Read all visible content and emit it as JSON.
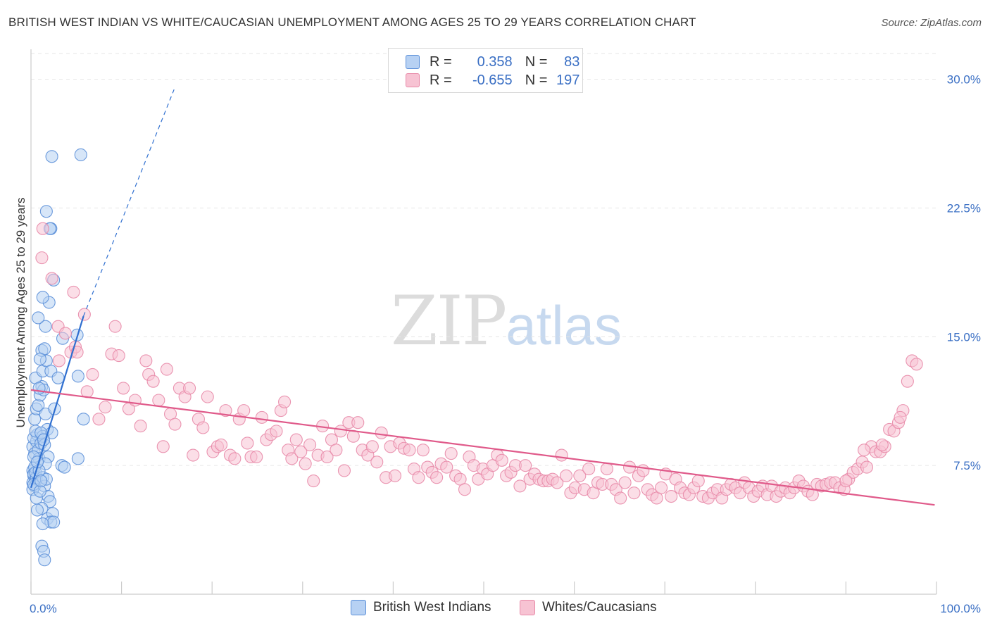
{
  "header": {
    "title": "BRITISH WEST INDIAN VS WHITE/CAUCASIAN UNEMPLOYMENT AMONG AGES 25 TO 29 YEARS CORRELATION CHART",
    "source": "Source: ZipAtlas.com"
  },
  "watermark": {
    "part_a": "ZIP",
    "part_b": "atlas"
  },
  "colors": {
    "blue_fill": "#b7d1f3",
    "blue_stroke": "#5b8fd8",
    "blue_line": "#2f6fd0",
    "pink_fill": "#f7c3d3",
    "pink_stroke": "#e88aa8",
    "pink_line": "#e05a8a",
    "tick_label": "#3a6fc4",
    "grid": "#e6e6e6"
  },
  "corr_legend": {
    "rows": [
      {
        "r_label": "R =",
        "r_value": "0.358",
        "n_label": "N =",
        "n_value": "83"
      },
      {
        "r_label": "R =",
        "r_value": "-0.655",
        "n_label": "N =",
        "n_value": "197"
      }
    ]
  },
  "chart_data": {
    "type": "scatter",
    "title": "BRITISH WEST INDIAN VS WHITE/CAUCASIAN UNEMPLOYMENT AMONG AGES 25 TO 29 YEARS CORRELATION CHART",
    "xlabel": "",
    "ylabel": "Unemployment Among Ages 25 to 29 years",
    "xlim": [
      0,
      100
    ],
    "ylim": [
      0,
      31.5
    ],
    "x_tick_labels": [
      {
        "value": 0,
        "label": "0.0%"
      },
      {
        "value": 100,
        "label": "100.0%"
      }
    ],
    "y_ticks": [
      {
        "value": 7.5,
        "label": "7.5%"
      },
      {
        "value": 15.0,
        "label": "15.0%"
      },
      {
        "value": 22.5,
        "label": "22.5%"
      },
      {
        "value": 30.0,
        "label": "30.0%"
      }
    ],
    "series": [
      {
        "name": "British West Indians",
        "r": 0.358,
        "n": 83,
        "trend": {
          "x0": 0.0,
          "y0": 6.2,
          "x1": 5.8,
          "y1": 16.2,
          "dash_to_x": 15.8,
          "dash_to_y": 29.4
        },
        "points": [
          [
            0.2,
            7.2
          ],
          [
            0.3,
            6.9
          ],
          [
            0.2,
            6.5
          ],
          [
            0.4,
            6.3
          ],
          [
            0.3,
            7.0
          ],
          [
            0.5,
            6.7
          ],
          [
            0.2,
            6.1
          ],
          [
            0.4,
            7.4
          ],
          [
            0.6,
            6.8
          ],
          [
            0.3,
            6.4
          ],
          [
            0.5,
            7.1
          ],
          [
            0.2,
            8.6
          ],
          [
            0.4,
            8.2
          ],
          [
            0.6,
            8.9
          ],
          [
            0.7,
            9.3
          ],
          [
            0.3,
            9.1
          ],
          [
            0.5,
            9.5
          ],
          [
            0.8,
            8.4
          ],
          [
            0.9,
            7.9
          ],
          [
            1.1,
            8.8
          ],
          [
            0.4,
            10.2
          ],
          [
            0.6,
            10.8
          ],
          [
            0.8,
            11.0
          ],
          [
            1.0,
            11.6
          ],
          [
            1.2,
            12.1
          ],
          [
            0.5,
            12.6
          ],
          [
            1.4,
            11.9
          ],
          [
            1.6,
            10.5
          ],
          [
            1.8,
            9.6
          ],
          [
            1.3,
            9.2
          ],
          [
            1.1,
            9.4
          ],
          [
            1.5,
            8.7
          ],
          [
            1.9,
            8.0
          ],
          [
            2.3,
            9.4
          ],
          [
            2.6,
            10.8
          ],
          [
            0.9,
            12.0
          ],
          [
            1.3,
            13.0
          ],
          [
            1.7,
            13.6
          ],
          [
            2.2,
            13.0
          ],
          [
            3.0,
            12.6
          ],
          [
            1.2,
            14.2
          ],
          [
            1.5,
            14.3
          ],
          [
            1.0,
            13.7
          ],
          [
            1.6,
            15.6
          ],
          [
            0.8,
            16.1
          ],
          [
            2.0,
            17.0
          ],
          [
            1.3,
            17.3
          ],
          [
            2.5,
            18.3
          ],
          [
            2.2,
            21.3
          ],
          [
            2.1,
            21.3
          ],
          [
            1.7,
            22.3
          ],
          [
            2.3,
            25.5
          ],
          [
            5.5,
            25.6
          ],
          [
            3.5,
            14.9
          ],
          [
            5.1,
            15.1
          ],
          [
            5.2,
            12.7
          ],
          [
            5.8,
            10.2
          ],
          [
            3.4,
            7.5
          ],
          [
            3.7,
            7.4
          ],
          [
            5.2,
            7.9
          ],
          [
            1.3,
            6.8
          ],
          [
            1.5,
            6.3
          ],
          [
            1.7,
            6.7
          ],
          [
            1.9,
            5.7
          ],
          [
            2.1,
            5.4
          ],
          [
            1.2,
            5.0
          ],
          [
            0.7,
            4.9
          ],
          [
            1.8,
            4.4
          ],
          [
            2.4,
            4.7
          ],
          [
            2.2,
            4.2
          ],
          [
            2.5,
            4.2
          ],
          [
            1.3,
            4.1
          ],
          [
            1.2,
            2.8
          ],
          [
            1.4,
            2.5
          ],
          [
            1.5,
            2.0
          ],
          [
            0.6,
            5.6
          ],
          [
            1.0,
            6.0
          ],
          [
            1.6,
            7.6
          ],
          [
            0.9,
            7.2
          ],
          [
            1.1,
            6.6
          ],
          [
            0.3,
            8.0
          ],
          [
            0.7,
            7.7
          ],
          [
            1.4,
            9.0
          ]
        ]
      },
      {
        "name": "Whites/Caucasians",
        "r": -0.655,
        "n": 197,
        "trend": {
          "x0": 0.0,
          "y0": 11.9,
          "x1": 99.8,
          "y1": 5.2
        },
        "points": [
          [
            1.2,
            19.6
          ],
          [
            1.3,
            21.3
          ],
          [
            2.3,
            18.4
          ],
          [
            3.0,
            15.6
          ],
          [
            3.1,
            13.6
          ],
          [
            3.8,
            15.2
          ],
          [
            4.4,
            14.1
          ],
          [
            4.9,
            14.4
          ],
          [
            5.1,
            14.1
          ],
          [
            5.9,
            16.3
          ],
          [
            4.7,
            17.6
          ],
          [
            6.2,
            11.8
          ],
          [
            6.8,
            12.8
          ],
          [
            7.5,
            10.2
          ],
          [
            8.2,
            10.9
          ],
          [
            8.9,
            14.0
          ],
          [
            9.3,
            15.6
          ],
          [
            9.7,
            13.9
          ],
          [
            10.2,
            12.0
          ],
          [
            10.8,
            10.8
          ],
          [
            11.5,
            11.3
          ],
          [
            12.1,
            9.8
          ],
          [
            12.7,
            13.6
          ],
          [
            13.0,
            12.8
          ],
          [
            13.5,
            12.4
          ],
          [
            14.1,
            11.3
          ],
          [
            14.6,
            8.6
          ],
          [
            15.0,
            13.1
          ],
          [
            15.4,
            10.5
          ],
          [
            15.9,
            9.9
          ],
          [
            16.4,
            12.0
          ],
          [
            17.0,
            11.5
          ],
          [
            17.5,
            12.0
          ],
          [
            17.9,
            8.1
          ],
          [
            18.5,
            10.2
          ],
          [
            19.0,
            9.7
          ],
          [
            19.5,
            11.5
          ],
          [
            20.1,
            8.3
          ],
          [
            20.6,
            8.6
          ],
          [
            21.0,
            8.7
          ],
          [
            21.5,
            10.7
          ],
          [
            22.0,
            8.1
          ],
          [
            22.5,
            7.9
          ],
          [
            23.0,
            10.2
          ],
          [
            23.5,
            10.7
          ],
          [
            23.9,
            8.8
          ],
          [
            24.3,
            8.0
          ],
          [
            24.9,
            8.0
          ],
          [
            25.5,
            10.3
          ],
          [
            26.0,
            9.0
          ],
          [
            26.5,
            9.3
          ],
          [
            27.1,
            9.5
          ],
          [
            27.6,
            10.7
          ],
          [
            28.0,
            11.2
          ],
          [
            28.4,
            8.4
          ],
          [
            28.8,
            7.9
          ],
          [
            29.3,
            9.0
          ],
          [
            29.8,
            8.3
          ],
          [
            30.3,
            7.6
          ],
          [
            30.8,
            8.7
          ],
          [
            31.2,
            6.6
          ],
          [
            31.7,
            8.1
          ],
          [
            32.2,
            9.8
          ],
          [
            32.7,
            8.0
          ],
          [
            33.2,
            9.0
          ],
          [
            33.7,
            8.4
          ],
          [
            34.2,
            9.5
          ],
          [
            34.6,
            7.2
          ],
          [
            35.1,
            10.0
          ],
          [
            35.6,
            9.2
          ],
          [
            36.1,
            10.0
          ],
          [
            36.6,
            8.4
          ],
          [
            37.2,
            8.1
          ],
          [
            37.7,
            8.6
          ],
          [
            38.2,
            7.7
          ],
          [
            38.7,
            9.4
          ],
          [
            39.2,
            6.8
          ],
          [
            39.7,
            8.6
          ],
          [
            40.2,
            6.9
          ],
          [
            40.7,
            8.8
          ],
          [
            41.2,
            8.5
          ],
          [
            41.8,
            8.4
          ],
          [
            42.3,
            7.3
          ],
          [
            42.8,
            6.8
          ],
          [
            43.3,
            8.4
          ],
          [
            43.8,
            7.4
          ],
          [
            44.3,
            7.1
          ],
          [
            44.8,
            6.8
          ],
          [
            45.3,
            7.6
          ],
          [
            45.9,
            7.4
          ],
          [
            46.4,
            8.2
          ],
          [
            46.9,
            6.9
          ],
          [
            47.4,
            6.7
          ],
          [
            47.9,
            6.1
          ],
          [
            48.4,
            8.0
          ],
          [
            48.9,
            7.5
          ],
          [
            49.4,
            6.7
          ],
          [
            49.9,
            7.3
          ],
          [
            50.4,
            7.0
          ],
          [
            51.0,
            7.5
          ],
          [
            51.5,
            8.1
          ],
          [
            52.0,
            7.8
          ],
          [
            52.5,
            6.9
          ],
          [
            53.0,
            7.1
          ],
          [
            53.5,
            7.5
          ],
          [
            54.0,
            6.3
          ],
          [
            54.6,
            7.5
          ],
          [
            55.1,
            6.7
          ],
          [
            55.6,
            7.0
          ],
          [
            56.1,
            6.7
          ],
          [
            56.6,
            6.6
          ],
          [
            57.1,
            6.6
          ],
          [
            57.6,
            6.7
          ],
          [
            58.1,
            6.5
          ],
          [
            58.6,
            8.1
          ],
          [
            59.1,
            6.9
          ],
          [
            59.6,
            5.9
          ],
          [
            60.1,
            6.2
          ],
          [
            60.6,
            6.9
          ],
          [
            61.1,
            6.1
          ],
          [
            61.6,
            7.3
          ],
          [
            62.1,
            5.9
          ],
          [
            62.6,
            6.5
          ],
          [
            63.1,
            6.4
          ],
          [
            63.6,
            7.3
          ],
          [
            64.1,
            6.4
          ],
          [
            64.6,
            6.1
          ],
          [
            65.1,
            5.6
          ],
          [
            65.6,
            6.5
          ],
          [
            66.1,
            7.4
          ],
          [
            66.6,
            5.9
          ],
          [
            67.1,
            6.9
          ],
          [
            67.6,
            7.2
          ],
          [
            68.1,
            6.1
          ],
          [
            68.6,
            5.8
          ],
          [
            69.1,
            5.6
          ],
          [
            69.6,
            6.2
          ],
          [
            70.1,
            7.0
          ],
          [
            70.7,
            5.7
          ],
          [
            71.2,
            6.7
          ],
          [
            71.7,
            6.2
          ],
          [
            72.2,
            5.9
          ],
          [
            72.7,
            5.8
          ],
          [
            73.2,
            6.2
          ],
          [
            73.7,
            6.6
          ],
          [
            74.2,
            5.7
          ],
          [
            74.8,
            5.6
          ],
          [
            75.3,
            5.9
          ],
          [
            75.8,
            6.1
          ],
          [
            76.3,
            5.6
          ],
          [
            76.8,
            6.1
          ],
          [
            77.3,
            6.4
          ],
          [
            77.8,
            6.2
          ],
          [
            78.3,
            5.9
          ],
          [
            78.8,
            6.5
          ],
          [
            79.3,
            6.2
          ],
          [
            79.8,
            5.7
          ],
          [
            80.3,
            6.0
          ],
          [
            80.8,
            6.3
          ],
          [
            81.3,
            5.8
          ],
          [
            81.8,
            6.3
          ],
          [
            82.3,
            5.7
          ],
          [
            82.8,
            6.0
          ],
          [
            83.3,
            6.2
          ],
          [
            83.8,
            5.9
          ],
          [
            84.3,
            6.2
          ],
          [
            84.8,
            6.6
          ],
          [
            85.3,
            6.3
          ],
          [
            85.8,
            6.0
          ],
          [
            86.3,
            5.8
          ],
          [
            86.8,
            6.4
          ],
          [
            87.3,
            6.3
          ],
          [
            87.8,
            6.4
          ],
          [
            88.3,
            6.5
          ],
          [
            88.8,
            6.5
          ],
          [
            89.3,
            6.2
          ],
          [
            89.8,
            6.1
          ],
          [
            90.3,
            6.7
          ],
          [
            90.8,
            7.1
          ],
          [
            91.3,
            7.3
          ],
          [
            91.8,
            7.7
          ],
          [
            92.3,
            7.4
          ],
          [
            92.8,
            8.6
          ],
          [
            93.3,
            8.3
          ],
          [
            93.8,
            8.3
          ],
          [
            94.3,
            8.6
          ],
          [
            94.8,
            9.6
          ],
          [
            95.3,
            9.5
          ],
          [
            95.8,
            10.0
          ],
          [
            96.3,
            10.7
          ],
          [
            96.8,
            12.4
          ],
          [
            97.3,
            13.6
          ],
          [
            97.8,
            13.4
          ],
          [
            96.0,
            10.3
          ],
          [
            94.0,
            8.7
          ],
          [
            92.0,
            8.4
          ],
          [
            90.0,
            6.6
          ]
        ]
      }
    ]
  },
  "legend_bottom": {
    "items": [
      {
        "label": "British West Indians"
      },
      {
        "label": "Whites/Caucasians"
      }
    ]
  }
}
